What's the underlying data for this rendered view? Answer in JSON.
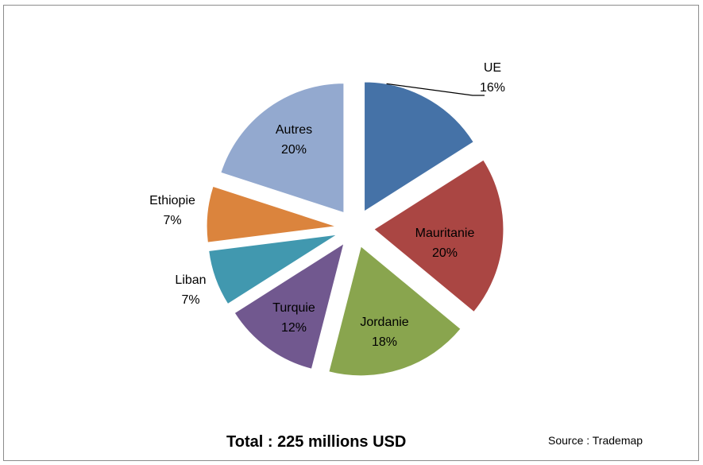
{
  "chart_data": {
    "type": "pie",
    "slices": [
      {
        "name": "UE",
        "value": 16,
        "label": "16%",
        "color": "#4572a7"
      },
      {
        "name": "Mauritanie",
        "value": 20,
        "label": "20%",
        "color": "#aa4643"
      },
      {
        "name": "Jordanie",
        "value": 18,
        "label": "18%",
        "color": "#89a54e"
      },
      {
        "name": "Turquie",
        "value": 12,
        "label": "12%",
        "color": "#71588f"
      },
      {
        "name": "Liban",
        "value": 7,
        "label": "7%",
        "color": "#4198af"
      },
      {
        "name": "Ethiopie",
        "value": 7,
        "label": "7%",
        "color": "#db843d"
      },
      {
        "name": "Autres",
        "value": 20,
        "label": "20%",
        "color": "#93a9cf"
      }
    ],
    "exploded": true
  },
  "footer": {
    "total": "Total : 225 millions USD",
    "source": "Source : Trademap"
  }
}
